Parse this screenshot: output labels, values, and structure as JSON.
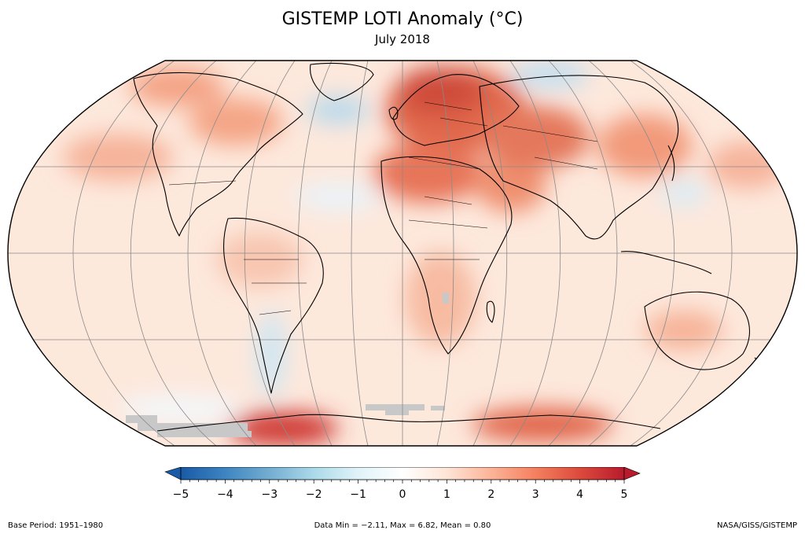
{
  "header": {
    "title": "GISTEMP LOTI Anomaly (°C)",
    "subtitle": "July 2018"
  },
  "colorbar": {
    "min": -5,
    "max": 5,
    "tick_labels": [
      "−5",
      "−4",
      "−3",
      "−2",
      "−1",
      "0",
      "1",
      "2",
      "3",
      "4",
      "5"
    ],
    "colors": [
      "#1a5aa6",
      "#3d85c2",
      "#74add1",
      "#abd9e9",
      "#e0f3f8",
      "#ffffff",
      "#fee4d6",
      "#fcb398",
      "#f4805f",
      "#dd4a3c",
      "#b81b2c"
    ]
  },
  "footer": {
    "base_period": "Base Period: 1951–1980",
    "stats": "Data Min = −2.11, Max = 6.82, Mean = 0.80",
    "source": "NASA/GISS/GISTEMP"
  },
  "map_colors": {
    "ocean_base": "#fde3d6",
    "no_data": "#c8c8c8",
    "outline": "#000000",
    "graticule": "#8a8a8a"
  }
}
